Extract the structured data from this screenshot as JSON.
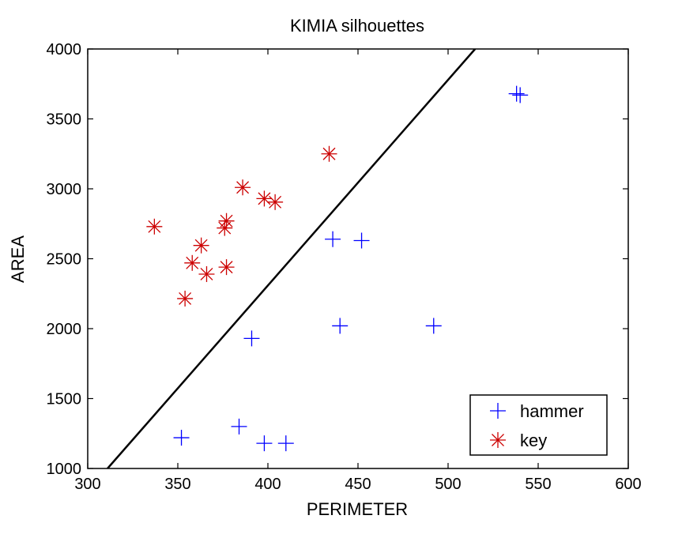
{
  "chart_data": {
    "type": "scatter",
    "title": "KIMIA silhouettes",
    "xlabel": "PERIMETER",
    "ylabel": "AREA",
    "xlim": [
      300,
      600
    ],
    "ylim": [
      1000,
      4000
    ],
    "xticks": [
      300,
      350,
      400,
      450,
      500,
      550,
      600
    ],
    "yticks": [
      1000,
      1500,
      2000,
      2500,
      3000,
      3500,
      4000
    ],
    "grid": false,
    "legend_position": "bottom-right",
    "series": [
      {
        "name": "hammer",
        "marker": "plus",
        "color": "#0000ff",
        "points": [
          [
            538,
            3680
          ],
          [
            540,
            3670
          ],
          [
            436,
            2640
          ],
          [
            452,
            2630
          ],
          [
            440,
            2020
          ],
          [
            492,
            2020
          ],
          [
            391,
            1930
          ],
          [
            352,
            1220
          ],
          [
            384,
            1300
          ],
          [
            398,
            1180
          ],
          [
            410,
            1180
          ]
        ]
      },
      {
        "name": "key",
        "marker": "asterisk",
        "color": "#cc0000",
        "points": [
          [
            434,
            3250
          ],
          [
            386,
            3010
          ],
          [
            398,
            2930
          ],
          [
            404,
            2905
          ],
          [
            337,
            2730
          ],
          [
            377,
            2770
          ],
          [
            376,
            2720
          ],
          [
            363,
            2595
          ],
          [
            358,
            2470
          ],
          [
            377,
            2440
          ],
          [
            366,
            2390
          ],
          [
            354,
            2215
          ]
        ]
      }
    ],
    "lines": [
      {
        "color": "#000000",
        "points": [
          [
            311,
            1000
          ],
          [
            515,
            4000
          ]
        ]
      }
    ]
  }
}
